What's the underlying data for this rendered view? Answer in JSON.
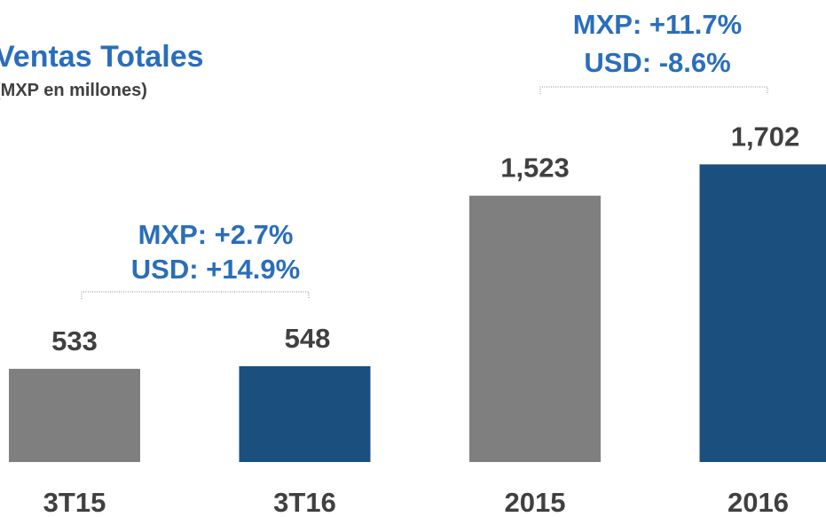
{
  "chart_data": {
    "type": "bar",
    "title": "Ventas Totales",
    "subtitle": "(MXP en millones)",
    "categories": [
      "3T15",
      "3T16",
      "2015",
      "2016"
    ],
    "values": [
      533,
      548,
      1523,
      1702
    ],
    "value_labels": [
      "533",
      "548",
      "1,523",
      "1,702"
    ],
    "colors": [
      "#7f7f7f",
      "#1b4f7e",
      "#7f7f7f",
      "#1b4f7e"
    ],
    "annotations": [
      {
        "lines": [
          "MXP: +2.7%",
          "USD: +14.9%"
        ]
      },
      {
        "lines": [
          "MXP: +11.7%",
          "USD: -8.6%"
        ]
      }
    ]
  }
}
